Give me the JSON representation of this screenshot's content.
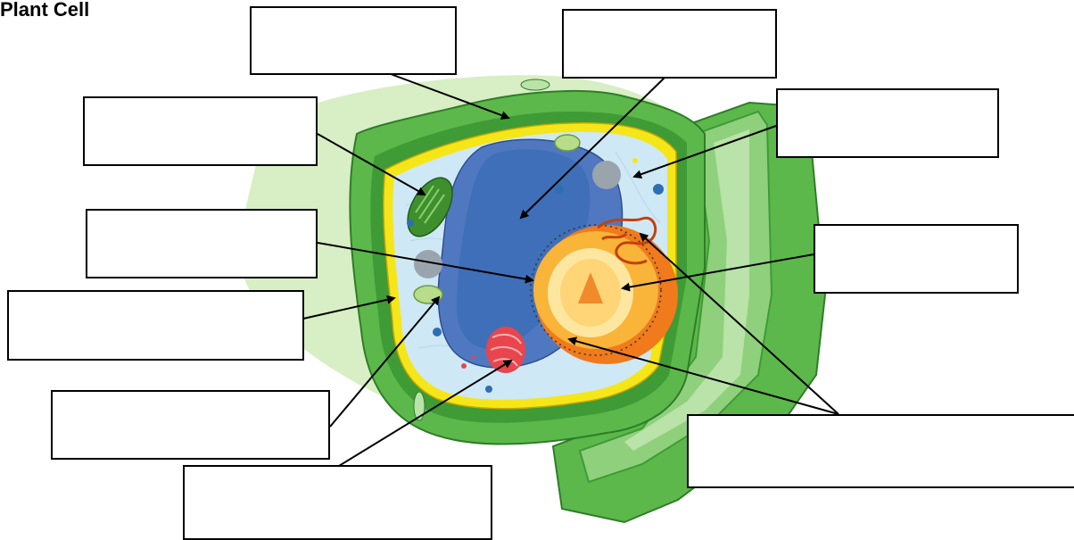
{
  "title": "Plant Cell",
  "colors": {
    "background_blob": "#d8eec4",
    "cell_wall_outer": "#5cb84a",
    "cell_wall_dark": "#3f9b35",
    "cell_wall_light": "#8fd07c",
    "membrane": "#f5e61a",
    "cytoplasm": "#cfe8f5",
    "vacuole": "#3f6fb8",
    "nucleus_outer": "#f07a1c",
    "nucleus_inner": "#ffe39a",
    "nucleolus": "#f08a2a",
    "chloroplast": "#3f8f2f",
    "golgi": "#e8454c",
    "mitochondria": "#b7dc8a"
  },
  "label_boxes": [
    "",
    "",
    "",
    "",
    "",
    "",
    "",
    "",
    "",
    ""
  ]
}
